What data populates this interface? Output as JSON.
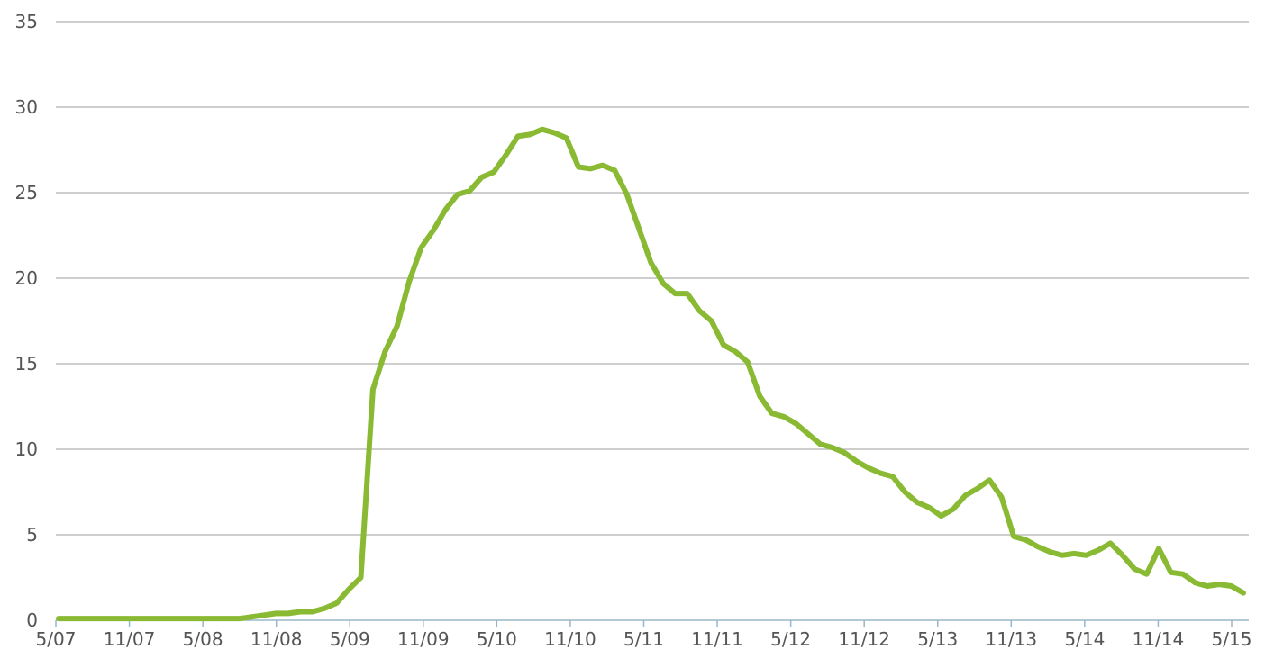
{
  "chart_data": {
    "type": "line",
    "title": "",
    "xlabel": "",
    "ylabel": "",
    "ylim": [
      0,
      35
    ],
    "yticks": [
      0,
      5,
      10,
      15,
      20,
      25,
      30,
      35
    ],
    "grid": true,
    "legend": "none",
    "colors": {
      "series": "#8aba33",
      "grid": "#bdbdbd",
      "axis": "#9ab7c9",
      "text": "#555555"
    },
    "x_start": "5/07",
    "x_end": "5/15",
    "xtick_labels": [
      "5/07",
      "11/07",
      "5/08",
      "11/08",
      "5/09",
      "11/09",
      "5/10",
      "11/10",
      "5/11",
      "11/11",
      "5/12",
      "11/12",
      "5/13",
      "11/13",
      "5/14",
      "11/14",
      "5/15"
    ],
    "series": [
      {
        "name": "",
        "values": [
          0.1,
          0.1,
          0.1,
          0.1,
          0.1,
          0.1,
          0.1,
          0.1,
          0.1,
          0.1,
          0.1,
          0.1,
          0.1,
          0.1,
          0.1,
          0.1,
          0.2,
          0.3,
          0.4,
          0.4,
          0.5,
          0.5,
          0.7,
          1.0,
          1.8,
          2.5,
          13.5,
          15.7,
          17.2,
          19.8,
          21.8,
          22.8,
          24.0,
          24.9,
          25.1,
          25.9,
          26.2,
          27.2,
          28.3,
          28.4,
          28.7,
          28.5,
          28.2,
          26.5,
          26.4,
          26.6,
          26.3,
          24.9,
          22.9,
          20.9,
          19.7,
          19.1,
          19.1,
          18.1,
          17.5,
          16.1,
          15.7,
          15.1,
          13.1,
          12.1,
          11.9,
          11.5,
          10.9,
          10.3,
          10.1,
          9.8,
          9.3,
          8.9,
          8.6,
          8.4,
          7.5,
          6.9,
          6.6,
          6.1,
          6.5,
          7.3,
          7.7,
          8.2,
          7.2,
          4.9,
          4.7,
          4.3,
          4.0,
          3.8,
          3.9,
          3.8,
          4.1,
          4.5,
          3.8,
          3.0,
          2.7,
          4.2,
          2.8,
          2.7,
          2.2,
          2.0,
          2.1,
          2.0,
          1.6
        ]
      }
    ]
  }
}
